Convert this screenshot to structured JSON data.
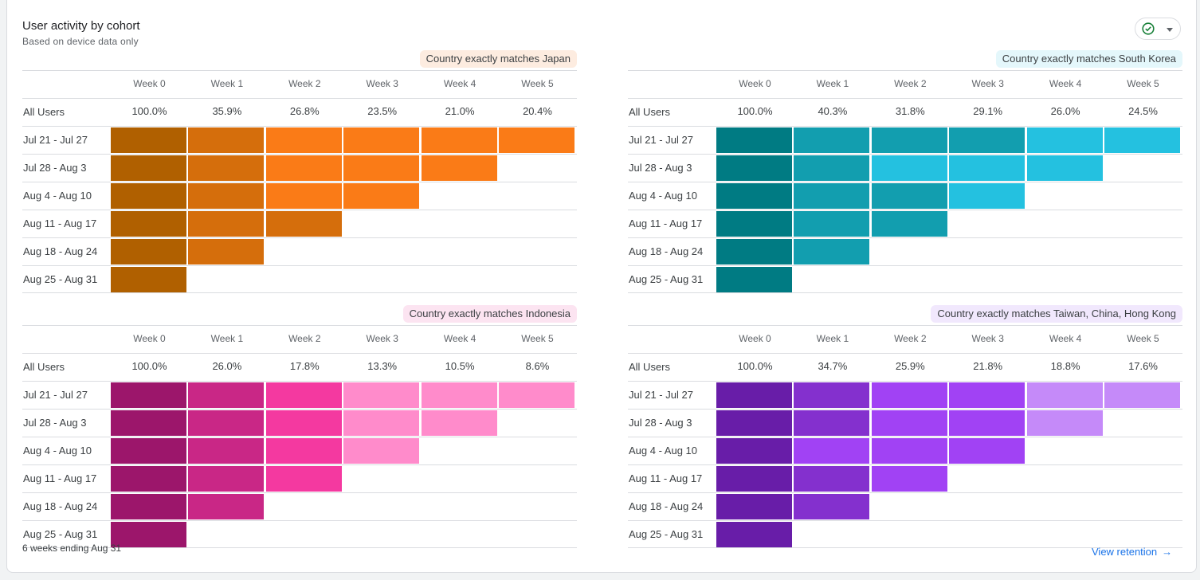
{
  "card": {
    "title": "User activity by cohort",
    "subtitle": "Based on device data only",
    "status_icon": "check-circle-icon",
    "status_color": "#188038",
    "footnote": "6 weeks ending Aug 31",
    "view_link": "View retention",
    "view_link_icon": "arrow-right-icon",
    "link_color": "#1a73e8"
  },
  "chart_data": [
    {
      "type": "heatmap",
      "title": "Country exactly matches Japan",
      "badge_color": "#fdece0",
      "columns": [
        "Week 0",
        "Week 1",
        "Week 2",
        "Week 3",
        "Week 4",
        "Week 5"
      ],
      "all_users_label": "All Users",
      "all_users": [
        "100.0%",
        "35.9%",
        "26.8%",
        "23.5%",
        "21.0%",
        "20.4%"
      ],
      "rows": [
        "Jul 21 - Jul 27",
        "Jul 28 - Aug 3",
        "Aug 4 - Aug 10",
        "Aug 11 - Aug 17",
        "Aug 18 - Aug 24",
        "Aug 25 - Aug 31"
      ],
      "palette": [
        "#b06000",
        "#d56e0c",
        "#fa7b17"
      ],
      "shade_levels": [
        [
          0,
          1,
          2,
          2,
          2,
          2
        ],
        [
          0,
          1,
          2,
          2,
          2
        ],
        [
          0,
          1,
          2,
          2
        ],
        [
          0,
          1,
          1
        ],
        [
          0,
          1
        ],
        [
          0
        ]
      ]
    },
    {
      "type": "heatmap",
      "title": "Country exactly matches South Korea",
      "badge_color": "#e4f7fb",
      "columns": [
        "Week 0",
        "Week 1",
        "Week 2",
        "Week 3",
        "Week 4",
        "Week 5"
      ],
      "all_users_label": "All Users",
      "all_users": [
        "100.0%",
        "40.3%",
        "31.8%",
        "29.1%",
        "26.0%",
        "24.5%"
      ],
      "rows": [
        "Jul 21 - Jul 27",
        "Jul 28 - Aug 3",
        "Aug 4 - Aug 10",
        "Aug 11 - Aug 17",
        "Aug 18 - Aug 24",
        "Aug 25 - Aug 31"
      ],
      "palette": [
        "#007b83",
        "#129eaf",
        "#24c1e0"
      ],
      "shade_levels": [
        [
          0,
          1,
          1,
          1,
          2,
          2
        ],
        [
          0,
          1,
          2,
          2,
          2
        ],
        [
          0,
          1,
          1,
          2
        ],
        [
          0,
          1,
          1
        ],
        [
          0,
          1
        ],
        [
          0
        ]
      ]
    },
    {
      "type": "heatmap",
      "title": "Country exactly matches Indonesia",
      "badge_color": "#fce4f1",
      "columns": [
        "Week 0",
        "Week 1",
        "Week 2",
        "Week 3",
        "Week 4",
        "Week 5"
      ],
      "all_users_label": "All Users",
      "all_users": [
        "100.0%",
        "26.0%",
        "17.8%",
        "13.3%",
        "10.5%",
        "8.6%"
      ],
      "rows": [
        "Jul 21 - Jul 27",
        "Jul 28 - Aug 3",
        "Aug 4 - Aug 10",
        "Aug 11 - Aug 17",
        "Aug 18 - Aug 24",
        "Aug 25 - Aug 31"
      ],
      "palette": [
        "#9c166b",
        "#c92786",
        "#f439a0",
        "#ff8bcb"
      ],
      "shade_levels": [
        [
          0,
          1,
          2,
          3,
          3,
          3
        ],
        [
          0,
          1,
          2,
          3,
          3
        ],
        [
          0,
          1,
          2,
          3
        ],
        [
          0,
          1,
          2
        ],
        [
          0,
          1
        ],
        [
          0
        ]
      ]
    },
    {
      "type": "heatmap",
      "title": "Country exactly matches Taiwan, China, Hong Kong",
      "badge_color": "#f1e8fd",
      "columns": [
        "Week 0",
        "Week 1",
        "Week 2",
        "Week 3",
        "Week 4",
        "Week 5"
      ],
      "all_users_label": "All Users",
      "all_users": [
        "100.0%",
        "34.7%",
        "25.9%",
        "21.8%",
        "18.8%",
        "17.6%"
      ],
      "rows": [
        "Jul 21 - Jul 27",
        "Jul 28 - Aug 3",
        "Aug 4 - Aug 10",
        "Aug 11 - Aug 17",
        "Aug 18 - Aug 24",
        "Aug 25 - Aug 31"
      ],
      "palette": [
        "#681da8",
        "#8430ce",
        "#a142f4",
        "#c58af9"
      ],
      "shade_levels": [
        [
          0,
          1,
          2,
          2,
          3,
          3
        ],
        [
          0,
          1,
          2,
          2,
          3
        ],
        [
          0,
          2,
          2,
          2
        ],
        [
          0,
          1,
          2
        ],
        [
          0,
          1
        ],
        [
          0
        ]
      ]
    }
  ]
}
